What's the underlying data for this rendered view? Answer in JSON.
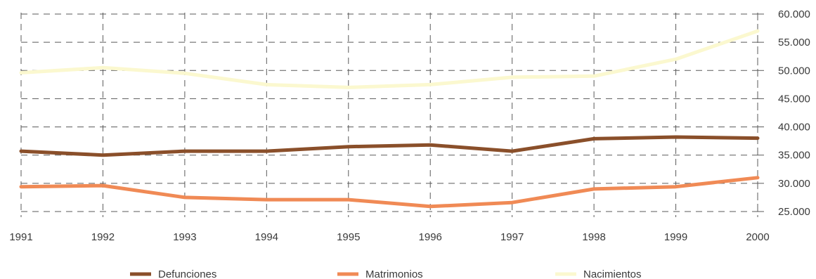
{
  "chart_data": {
    "type": "line",
    "title": "",
    "xlabel": "",
    "ylabel": "",
    "x": [
      "1991",
      "1992",
      "1993",
      "1994",
      "1995",
      "1996",
      "1997",
      "1998",
      "1999",
      "2000"
    ],
    "yticks": [
      "25.000",
      "30.000",
      "35.000",
      "40.000",
      "45.000",
      "50.000",
      "55.000",
      "60.000"
    ],
    "ylim": [
      25000,
      60000
    ],
    "grid": true,
    "y_axis_position": "right",
    "legend_position": "bottom",
    "series": [
      {
        "name": "Defunciones",
        "color": "#8a4f2a",
        "values": [
          35700,
          35000,
          35700,
          35700,
          36500,
          36800,
          35700,
          37900,
          38200,
          38000
        ]
      },
      {
        "name": "Matrimonios",
        "color": "#f08a55",
        "values": [
          29400,
          29600,
          27500,
          27100,
          27100,
          25900,
          26600,
          29000,
          29400,
          31000
        ]
      },
      {
        "name": "Nacimientos",
        "color": "#fbf8cf",
        "values": [
          49600,
          50500,
          49500,
          47500,
          47000,
          47500,
          48800,
          49000,
          52000,
          57000
        ]
      }
    ]
  }
}
